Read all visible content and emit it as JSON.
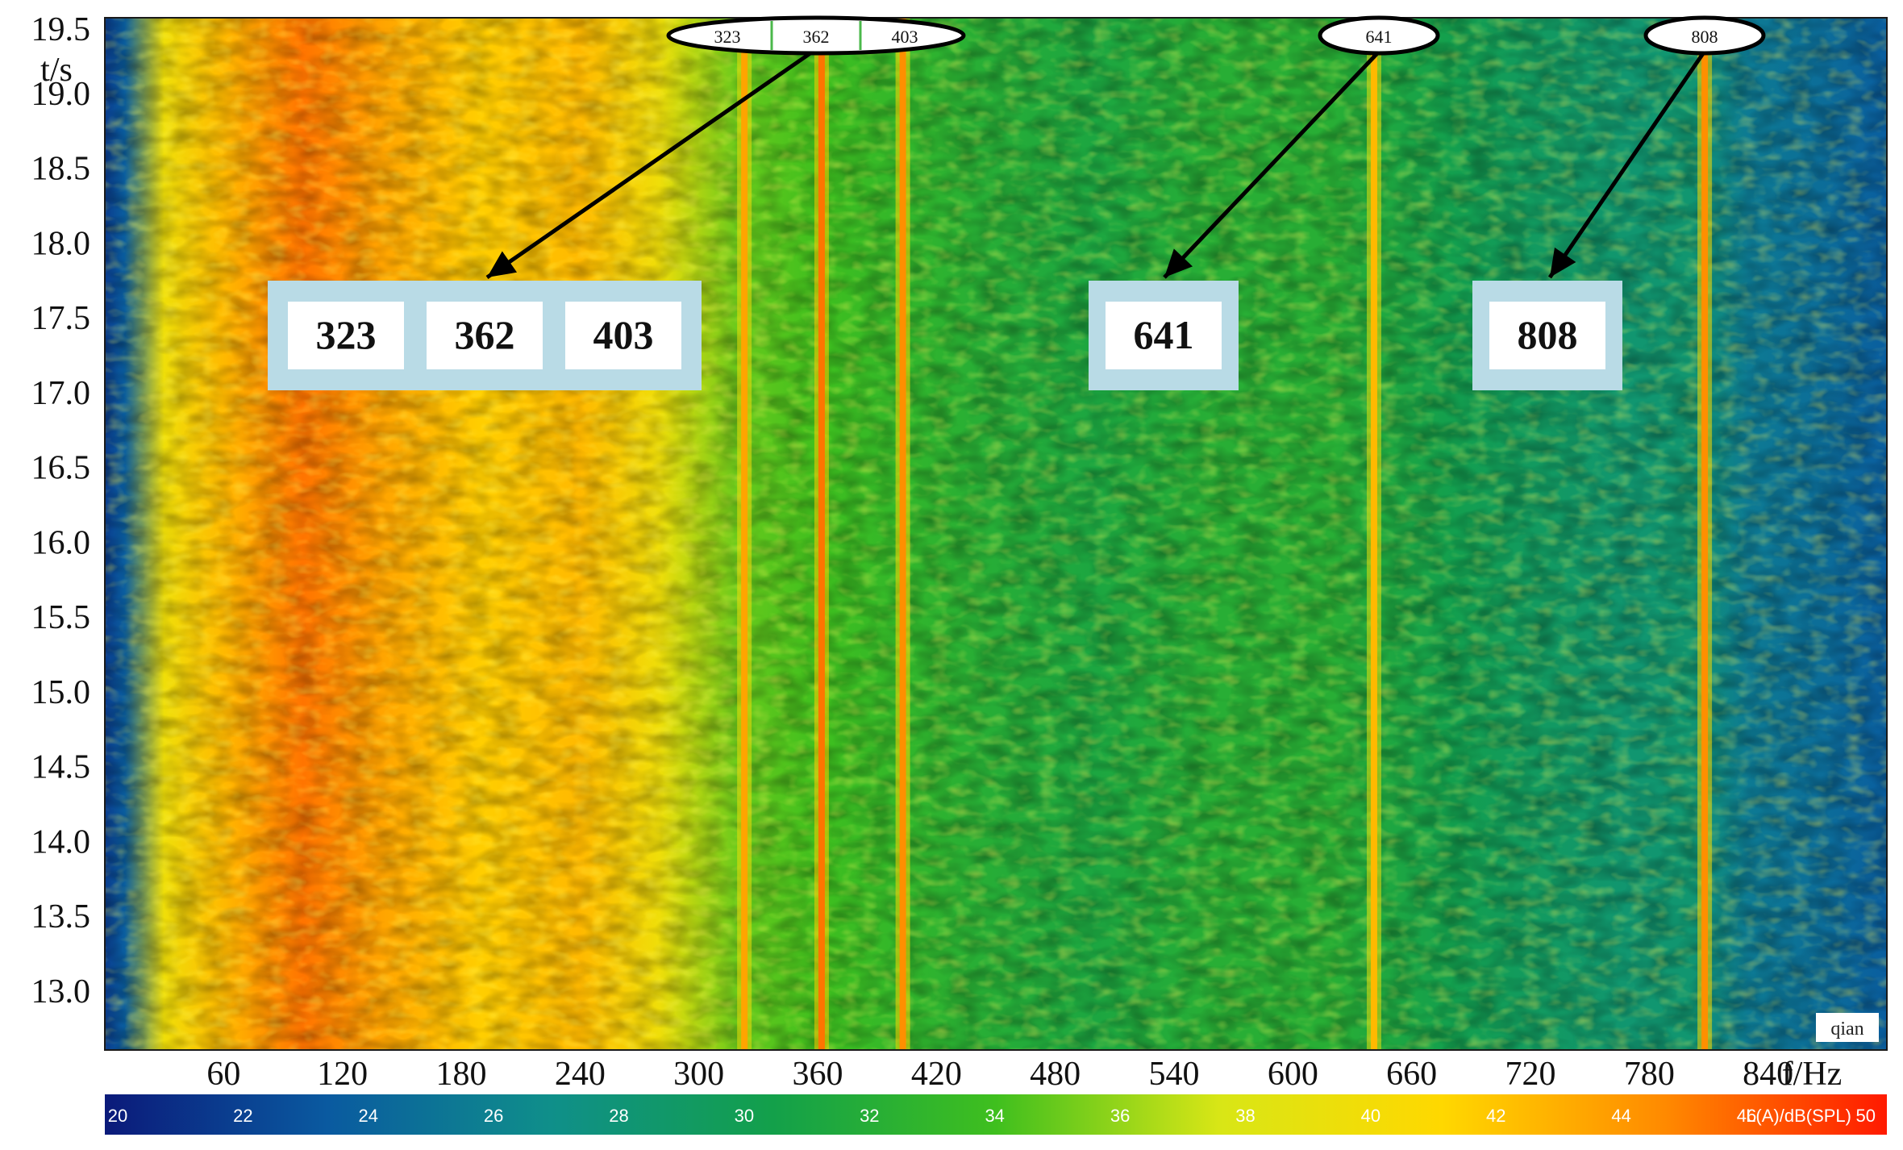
{
  "chart_data": {
    "type": "heatmap",
    "xlabel": "f/Hz",
    "ylabel": "t/s",
    "xlim": [
      0,
      900
    ],
    "ylim": [
      12.6,
      19.5
    ],
    "x_ticks": [
      60,
      120,
      180,
      240,
      300,
      360,
      420,
      480,
      540,
      600,
      660,
      720,
      780,
      840
    ],
    "x_tick_labels": [
      "60",
      "120",
      "180",
      "240",
      "300",
      "360",
      "420",
      "480",
      "540",
      "600",
      "660",
      "720",
      "780",
      "840"
    ],
    "y_ticks": [
      13.0,
      13.5,
      14.0,
      14.5,
      15.0,
      15.5,
      16.0,
      16.5,
      17.0,
      17.5,
      18.0,
      18.5,
      19.0,
      19.5
    ],
    "y_tick_labels": [
      "13.0",
      "13.5",
      "14.0",
      "14.5",
      "15.0",
      "15.5",
      "16.0",
      "16.5",
      "17.0",
      "17.5",
      "18.0",
      "18.5",
      "19.0",
      "19.5"
    ],
    "colorbar": {
      "label": "L(A)/dB(SPL)",
      "range": [
        20,
        50
      ],
      "ticks": [
        "20",
        "22",
        "24",
        "26",
        "28",
        "30",
        "32",
        "34",
        "36",
        "38",
        "40",
        "42",
        "44",
        "46",
        "50"
      ],
      "colors": [
        "#0b1a7a",
        "#0a5aa0",
        "#0f8f8a",
        "#13a04a",
        "#3fbf1e",
        "#d8e616",
        "#ffd800",
        "#ff8a00",
        "#ff1a00"
      ]
    },
    "level_profile": [
      {
        "f": 0,
        "level": 22
      },
      {
        "f": 10,
        "level": 24
      },
      {
        "f": 30,
        "level": 41
      },
      {
        "f": 60,
        "level": 44
      },
      {
        "f": 100,
        "level": 47
      },
      {
        "f": 140,
        "level": 45
      },
      {
        "f": 190,
        "level": 43
      },
      {
        "f": 240,
        "level": 44
      },
      {
        "f": 280,
        "level": 41
      },
      {
        "f": 320,
        "level": 36
      },
      {
        "f": 360,
        "level": 35
      },
      {
        "f": 400,
        "level": 34
      },
      {
        "f": 440,
        "level": 33
      },
      {
        "f": 500,
        "level": 32
      },
      {
        "f": 560,
        "level": 33
      },
      {
        "f": 620,
        "level": 33
      },
      {
        "f": 680,
        "level": 31
      },
      {
        "f": 720,
        "level": 30
      },
      {
        "f": 770,
        "level": 29
      },
      {
        "f": 800,
        "level": 29
      },
      {
        "f": 830,
        "level": 26
      },
      {
        "f": 870,
        "level": 25
      },
      {
        "f": 900,
        "level": 24
      }
    ],
    "tonal_lines": [
      {
        "f": 323,
        "level": 45
      },
      {
        "f": 362,
        "level": 47
      },
      {
        "f": 403,
        "level": 46
      },
      {
        "f": 641,
        "level": 44
      },
      {
        "f": 808,
        "level": 46
      }
    ],
    "annotations": {
      "top_markers": [
        {
          "group": "left",
          "labels": [
            "323",
            "362",
            "403"
          ]
        },
        {
          "group": "mid",
          "labels": [
            "641"
          ]
        },
        {
          "group": "right",
          "labels": [
            "808"
          ]
        }
      ],
      "callout_boxes": [
        {
          "group": "left",
          "labels": [
            "323",
            "362",
            "403"
          ]
        },
        {
          "group": "mid",
          "labels": [
            "641"
          ]
        },
        {
          "group": "right",
          "labels": [
            "808"
          ]
        }
      ]
    },
    "watermark": "qian"
  }
}
